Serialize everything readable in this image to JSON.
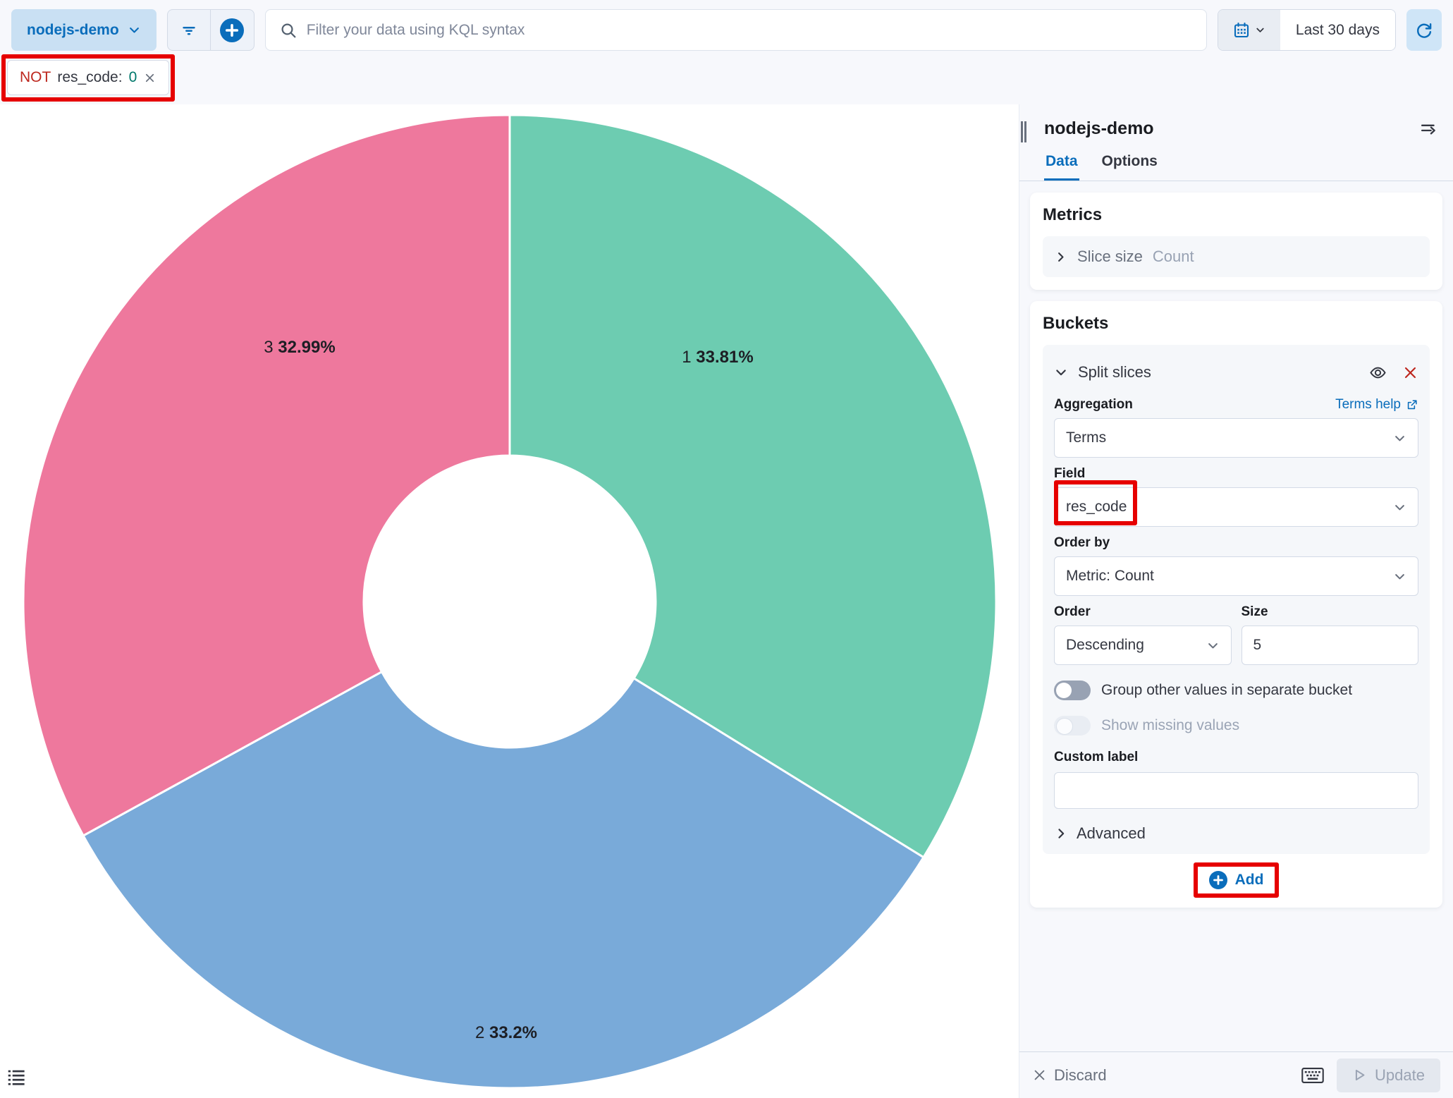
{
  "colors": {
    "primary": "#0a6dbb",
    "danger": "#bd271e",
    "success_text": "#00786b",
    "annotation": "#e60000",
    "slice_green": "#6DCCB1",
    "slice_blue": "#79AAD9",
    "slice_pink": "#EE789D"
  },
  "topbar": {
    "data_view": "nodejs-demo",
    "search_placeholder": "Filter your data using KQL syntax",
    "time_range": "Last 30 days"
  },
  "filter_pill": {
    "negate": "NOT",
    "field": "res_code:",
    "value": "0"
  },
  "chart_data": {
    "type": "pie",
    "donut": true,
    "start_angle": "top",
    "direction": "clockwise",
    "field": "res_code",
    "metric": "Count",
    "slices": [
      {
        "label": "1",
        "percent": 33.81,
        "percent_label": "33.81%",
        "color": "#6DCCB1"
      },
      {
        "label": "2",
        "percent": 33.2,
        "percent_label": "33.2%",
        "color": "#79AAD9"
      },
      {
        "label": "3",
        "percent": 32.99,
        "percent_label": "32.99%",
        "color": "#EE789D"
      }
    ]
  },
  "panel": {
    "title": "nodejs-demo",
    "tabs": {
      "data": "Data",
      "options": "Options"
    },
    "metrics": {
      "heading": "Metrics",
      "slice_size_label": "Slice size",
      "slice_size_value": "Count"
    },
    "buckets": {
      "heading": "Buckets",
      "split_slices_label": "Split slices",
      "aggregation_label": "Aggregation",
      "terms_help_label": "Terms help",
      "aggregation_value": "Terms",
      "field_label": "Field",
      "field_value": "res_code",
      "order_by_label": "Order by",
      "order_by_value": "Metric: Count",
      "order_label": "Order",
      "order_value": "Descending",
      "size_label": "Size",
      "size_value": "5",
      "group_other_label": "Group other values in separate bucket",
      "show_missing_label": "Show missing values",
      "custom_label_label": "Custom label",
      "custom_label_value": "",
      "advanced_label": "Advanced",
      "add_label": "Add"
    },
    "footer": {
      "discard": "Discard",
      "update": "Update"
    }
  }
}
